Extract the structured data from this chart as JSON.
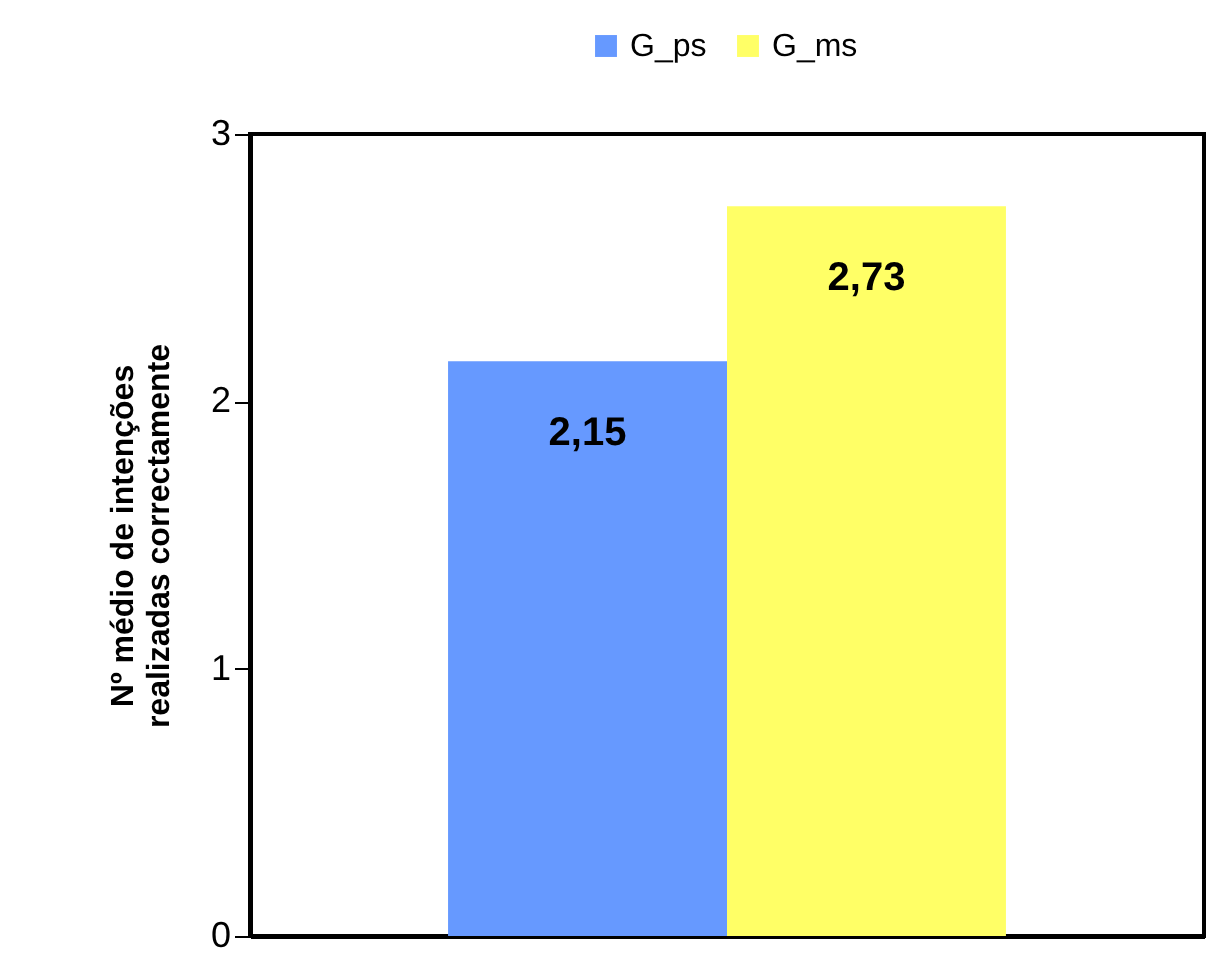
{
  "chart_data": {
    "type": "bar",
    "ylabel": "Nº médio de intenções\nrealizadas correctamente",
    "categories": [
      null
    ],
    "series": [
      {
        "name": "G_ps",
        "color": "#6699ff",
        "values": [
          2.15
        ],
        "value_labels": [
          "2,15"
        ]
      },
      {
        "name": "G_ms",
        "color": "#ffff66",
        "values": [
          2.73
        ],
        "value_labels": [
          "2,73"
        ]
      }
    ],
    "ylim": [
      0,
      3
    ],
    "yticks": [
      0,
      1,
      2,
      3
    ],
    "grid": false,
    "legend": "top",
    "tick_labels": "y"
  }
}
